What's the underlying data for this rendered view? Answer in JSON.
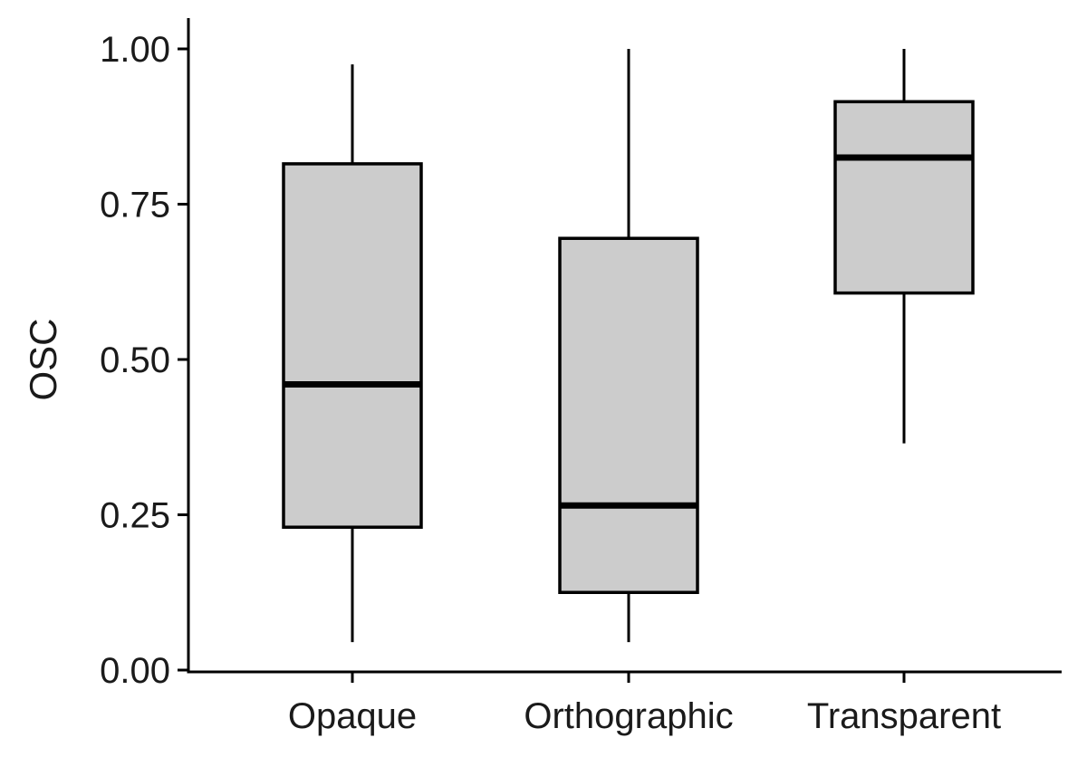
{
  "chart_data": {
    "type": "boxplot",
    "title": "",
    "xlabel": "",
    "ylabel": "OSC",
    "ylim": [
      0,
      1
    ],
    "yticks": [
      0.0,
      0.25,
      0.5,
      0.75,
      1.0
    ],
    "ytick_labels": [
      "0.00",
      "0.25",
      "0.50",
      "0.75",
      "1.00"
    ],
    "categories": [
      "Opaque",
      "Orthographic",
      "Transparent"
    ],
    "fill_color": "#cccccc",
    "line_color": "#000000",
    "boxes": [
      {
        "name": "Opaque",
        "whisker_low": 0.045,
        "q1": 0.23,
        "median": 0.46,
        "q3": 0.815,
        "whisker_high": 0.975
      },
      {
        "name": "Orthographic",
        "whisker_low": 0.045,
        "q1": 0.125,
        "median": 0.265,
        "q3": 0.695,
        "whisker_high": 1.0
      },
      {
        "name": "Transparent",
        "whisker_low": 0.365,
        "q1": 0.607,
        "median": 0.825,
        "q3": 0.915,
        "whisker_high": 1.0
      }
    ]
  }
}
